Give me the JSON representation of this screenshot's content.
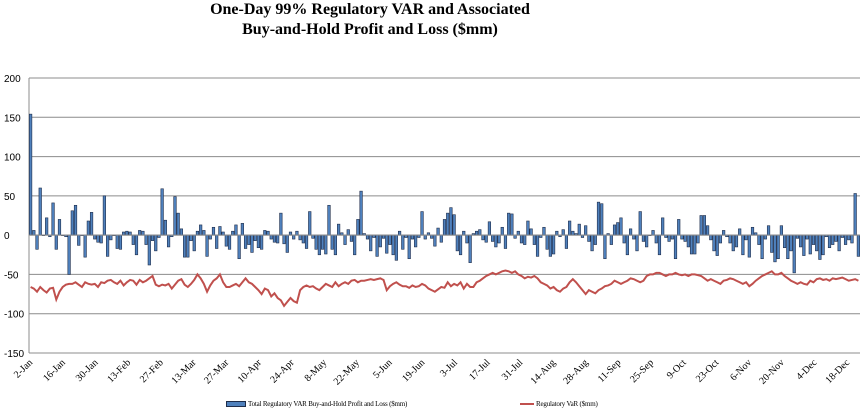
{
  "chart_data": {
    "type": "bar+line",
    "title_lines": [
      "One-Day 99% Regulatory VAR and Associated",
      "Buy-and-Hold Profit and Loss ($mm)"
    ],
    "ylim": [
      -150,
      200
    ],
    "yticks": [
      "200",
      "150",
      "100",
      "50",
      "0",
      "-50",
      "-100",
      "-150"
    ],
    "ytick_values": [
      200,
      150,
      100,
      50,
      0,
      -50,
      -100,
      -150
    ],
    "xtick_labels": [
      "2-Jan",
      "16-Jan",
      "30-Jan",
      "13-Feb",
      "27-Feb",
      "13-Mar",
      "27-Mar",
      "10-Apr",
      "24-Apr",
      "8-May",
      "22-May",
      "5-Jun",
      "19-Jun",
      "3-Jul",
      "17-Jul",
      "31-Jul",
      "14-Aug",
      "28-Aug",
      "11-Sep",
      "25-Sep",
      "9-Oct",
      "23-Oct",
      "6-Nov",
      "20-Nov",
      "4-Dec",
      "18-Dec"
    ],
    "grid": true,
    "legend_position": "bottom",
    "colors": {
      "bar": "#4f81bd",
      "bar_edge": "#1f2d4a",
      "line": "#c0504d",
      "grid": "#8c8c8c"
    },
    "series": [
      {
        "name": "Total Regulatory VAR Buy-and-Hold Profit and Loss ($mm)",
        "type": "bar",
        "values": [
          154,
          6,
          -18,
          60,
          0,
          22,
          -2,
          41,
          -18,
          20,
          0,
          -2,
          -50,
          31,
          38,
          -13,
          0,
          -28,
          18,
          29,
          -5,
          -9,
          -10,
          50,
          -27,
          -6,
          0,
          -17,
          -18,
          4,
          5,
          4,
          -12,
          -25,
          6,
          5,
          -12,
          -38,
          -7,
          -20,
          -3,
          59,
          19,
          -15,
          -2,
          49,
          28,
          8,
          -28,
          -28,
          -7,
          -20,
          5,
          13,
          6,
          -27,
          -5,
          10,
          -17,
          11,
          4,
          -14,
          -18,
          5,
          13,
          -30,
          15,
          -17,
          -12,
          -22,
          -7,
          -16,
          -18,
          6,
          5,
          -5,
          -9,
          -10,
          28,
          -11,
          -22,
          4,
          -5,
          5,
          -6,
          -10,
          -17,
          30,
          -4,
          -18,
          -25,
          -18,
          -24,
          38,
          -18,
          -25,
          14,
          3,
          -12,
          7,
          -8,
          -25,
          20,
          56,
          2,
          -5,
          -20,
          -3,
          -27,
          -15,
          -4,
          -23,
          -12,
          -25,
          -32,
          5,
          -18,
          -3,
          -30,
          -5,
          -15,
          -3,
          30,
          -5,
          3,
          -4,
          -14,
          9,
          -9,
          20,
          28,
          35,
          26,
          -20,
          -25,
          5,
          -10,
          -35,
          2,
          5,
          7,
          -6,
          -9,
          17,
          -8,
          -15,
          -10,
          10,
          -17,
          28,
          27,
          -4,
          5,
          -10,
          -12,
          18,
          8,
          -12,
          -27,
          -3,
          10,
          -18,
          -27,
          -24,
          5,
          -2,
          7,
          -17,
          18,
          5,
          2,
          14,
          -3,
          12,
          -8,
          -20,
          -12,
          42,
          40,
          -30,
          2,
          -12,
          13,
          16,
          22,
          -10,
          -25,
          8,
          -5,
          -20,
          30,
          -8,
          -15,
          0,
          6,
          -10,
          -25,
          22,
          -3,
          -8,
          -5,
          -30,
          20,
          -5,
          -8,
          -15,
          -24,
          -24,
          -10,
          25,
          25,
          12,
          -6,
          -20,
          -26,
          -10,
          6,
          -2,
          -10,
          -20,
          -15,
          8,
          -25,
          -6,
          -28,
          10,
          3,
          -12,
          -30,
          -5,
          12,
          -22,
          -34,
          -30,
          12,
          -16,
          -30,
          -20,
          -48,
          -4,
          -15,
          -26,
          -5,
          -24,
          -12,
          -20,
          -31,
          -25,
          -2,
          -16,
          -12,
          -8,
          -20,
          -3,
          -12,
          -6,
          -10,
          53,
          -27
        ]
      },
      {
        "name": "Regulatory VaR ($mm)",
        "type": "line",
        "values": [
          -66,
          -68,
          -72,
          -66,
          -70,
          -73,
          -68,
          -67,
          -82,
          -72,
          -66,
          -63,
          -62,
          -62,
          -60,
          -63,
          -66,
          -60,
          -62,
          -63,
          -62,
          -66,
          -60,
          -61,
          -58,
          -57,
          -60,
          -62,
          -58,
          -64,
          -60,
          -57,
          -58,
          -63,
          -57,
          -60,
          -58,
          -55,
          -52,
          -63,
          -65,
          -63,
          -64,
          -62,
          -68,
          -63,
          -58,
          -56,
          -63,
          -66,
          -62,
          -57,
          -50,
          -55,
          -62,
          -72,
          -64,
          -58,
          -55,
          -50,
          -60,
          -66,
          -66,
          -64,
          -62,
          -65,
          -60,
          -55,
          -60,
          -62,
          -66,
          -70,
          -75,
          -68,
          -70,
          -78,
          -74,
          -80,
          -83,
          -90,
          -85,
          -80,
          -84,
          -86,
          -70,
          -66,
          -64,
          -66,
          -65,
          -68,
          -70,
          -66,
          -62,
          -64,
          -66,
          -60,
          -65,
          -62,
          -60,
          -62,
          -58,
          -57,
          -60,
          -58,
          -58,
          -57,
          -56,
          -57,
          -56,
          -55,
          -57,
          -70,
          -65,
          -62,
          -60,
          -63,
          -65,
          -65,
          -67,
          -64,
          -66,
          -65,
          -62,
          -64,
          -68,
          -70,
          -72,
          -69,
          -66,
          -67,
          -60,
          -65,
          -62,
          -64,
          -60,
          -68,
          -62,
          -66,
          -66,
          -60,
          -58,
          -55,
          -52,
          -50,
          -48,
          -50,
          -48,
          -46,
          -45,
          -46,
          -48,
          -46,
          -50,
          -52,
          -55,
          -53,
          -54,
          -52,
          -55,
          -60,
          -62,
          -64,
          -68,
          -66,
          -70,
          -72,
          -68,
          -66,
          -60,
          -56,
          -60,
          -65,
          -70,
          -75,
          -70,
          -72,
          -74,
          -70,
          -68,
          -65,
          -64,
          -62,
          -58,
          -60,
          -62,
          -60,
          -58,
          -55,
          -56,
          -58,
          -60,
          -58,
          -52,
          -50,
          -50,
          -48,
          -48,
          -50,
          -52,
          -50,
          -50,
          -48,
          -50,
          -51,
          -50,
          -52,
          -50,
          -50,
          -51,
          -52,
          -55,
          -58,
          -56,
          -58,
          -60,
          -62,
          -58,
          -57,
          -55,
          -56,
          -58,
          -60,
          -62,
          -60,
          -65,
          -62,
          -58,
          -55,
          -52,
          -50,
          -48,
          -46,
          -50,
          -50,
          -48,
          -52,
          -55,
          -58,
          -60,
          -62,
          -60,
          -62,
          -63,
          -58,
          -60,
          -56,
          -55,
          -57,
          -56,
          -58,
          -55,
          -56,
          -55,
          -54,
          -56,
          -58,
          -57,
          -56,
          -58
        ]
      }
    ]
  }
}
